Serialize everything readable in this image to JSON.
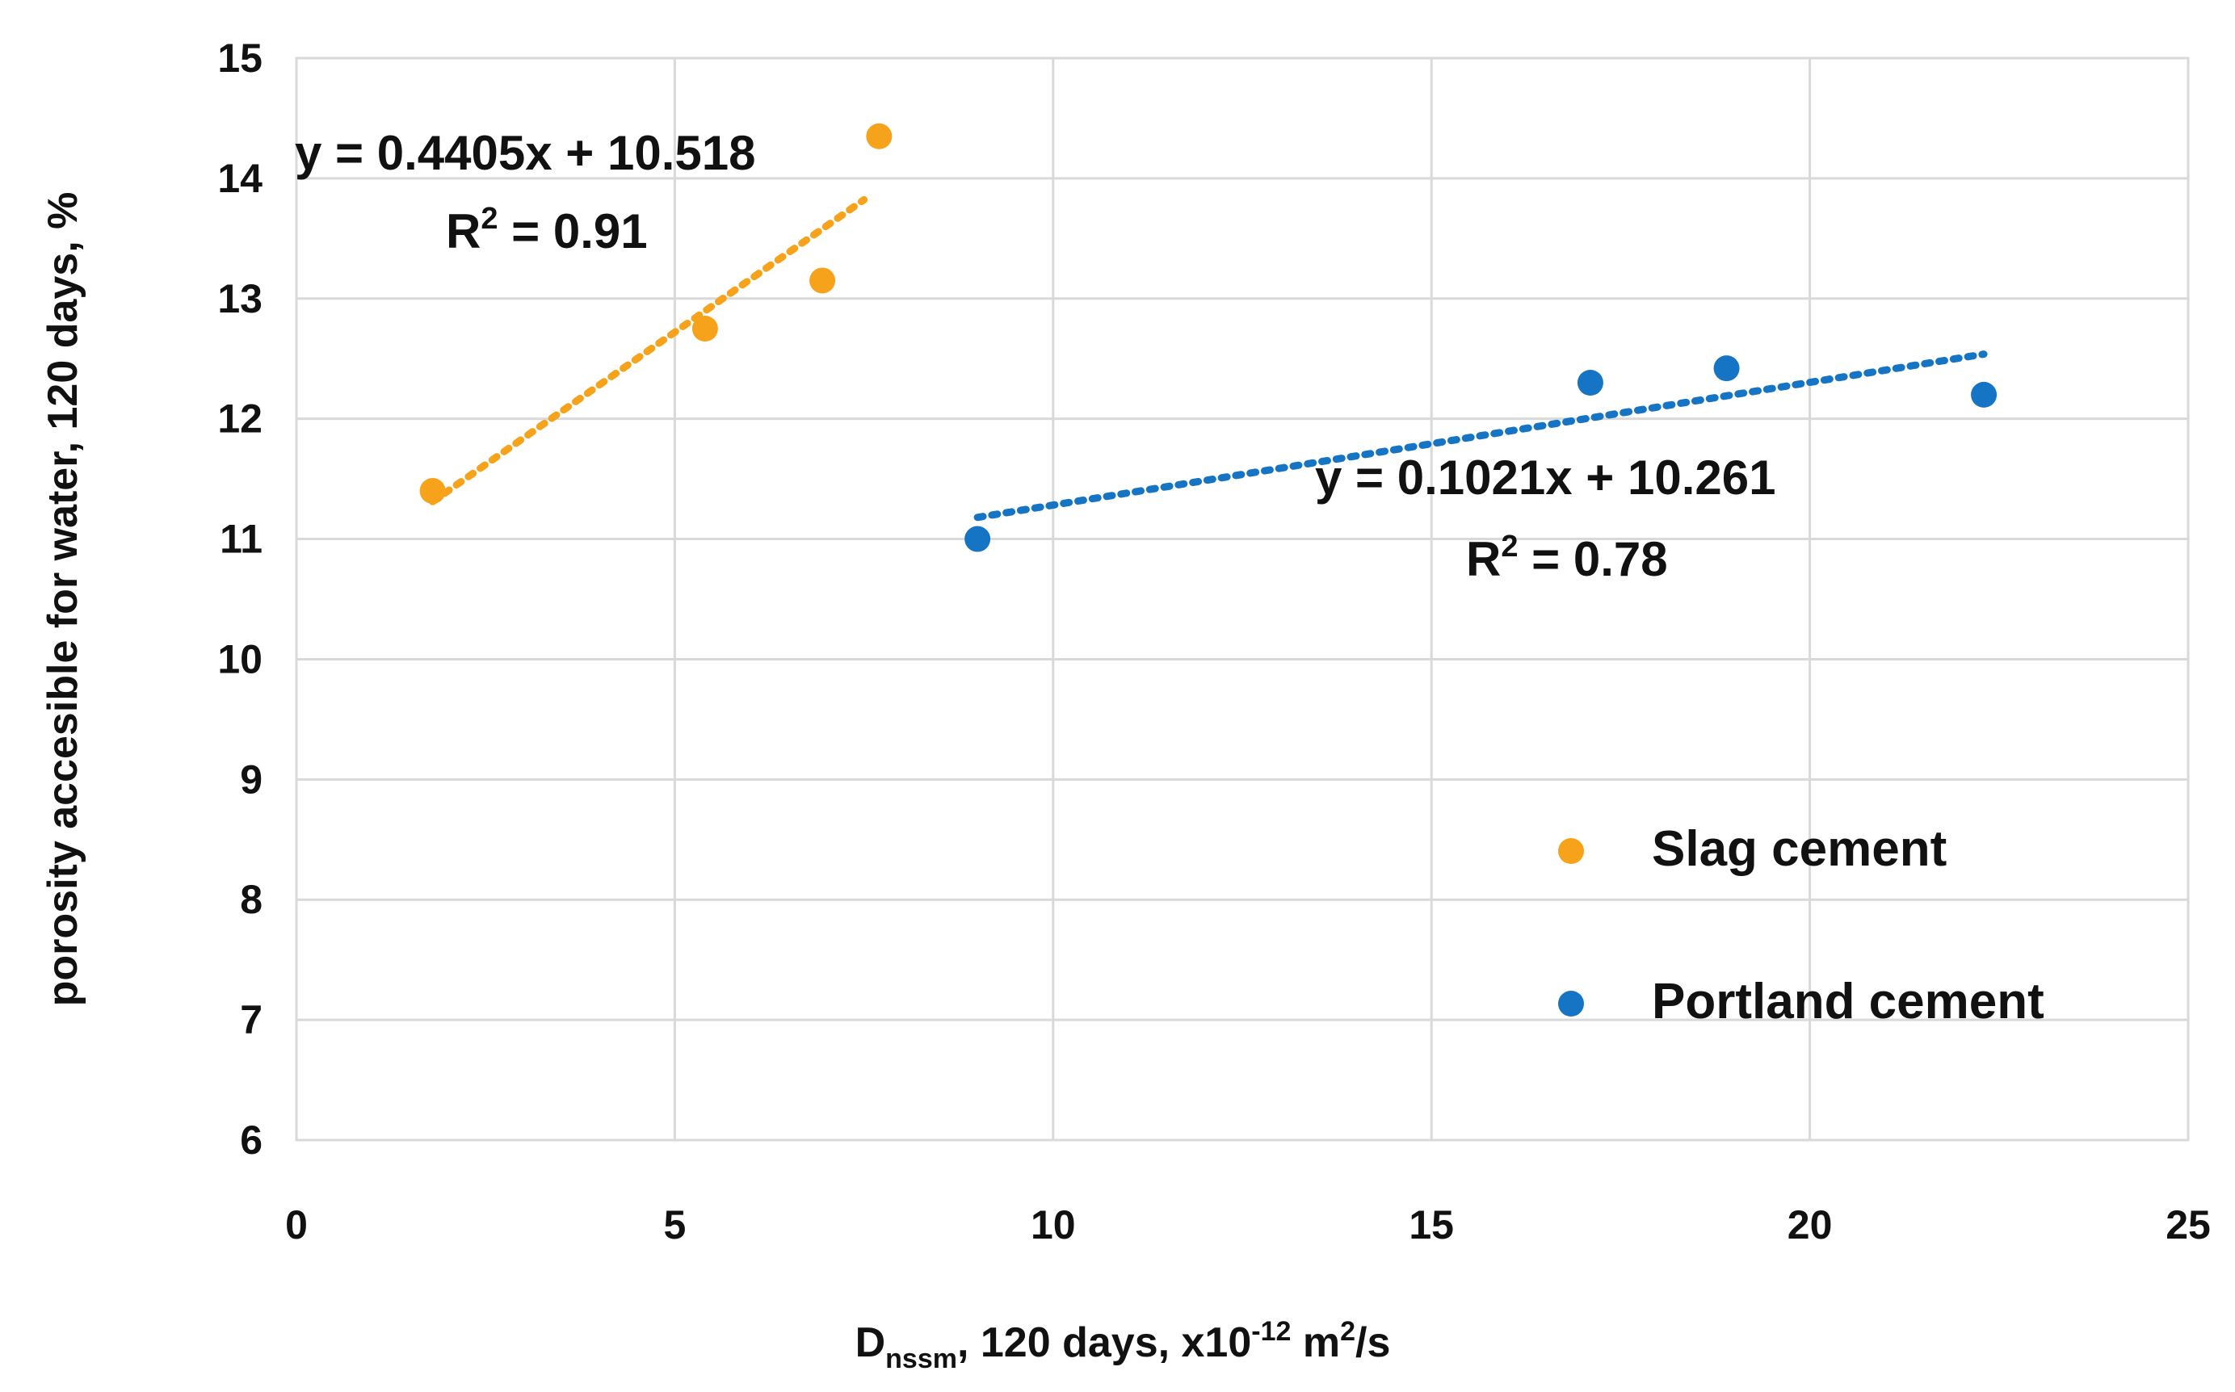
{
  "chart_data": {
    "type": "scatter",
    "title": "",
    "xlabel": {
      "main": "D",
      "sub": "nssm",
      "rest": ", 120 days, x10",
      "exp": "-12",
      "unit": " m",
      "unit_exp": "2",
      "unit_end": "/s"
    },
    "ylabel": "porosity accesible for water, 120  days, %",
    "xlim": [
      0,
      25
    ],
    "ylim": [
      6,
      15
    ],
    "xticks": [
      "0",
      "5",
      "10",
      "15",
      "20",
      "25"
    ],
    "yticks": [
      "6",
      "7",
      "8",
      "9",
      "10",
      "11",
      "12",
      "13",
      "14",
      "15"
    ],
    "grid": true,
    "legend_position": "lower-right",
    "series": [
      {
        "name": "Slag cement",
        "color": "#f7a21b",
        "points": [
          [
            1.8,
            11.4
          ],
          [
            5.4,
            12.75
          ],
          [
            6.95,
            13.15
          ],
          [
            7.7,
            14.35
          ]
        ],
        "trend": {
          "slope": 0.4405,
          "intercept": 10.518,
          "x_range": [
            1.8,
            7.5
          ],
          "equation": "y = 0.4405x + 10.518",
          "r2_prefix": "R",
          "r2_exp": "2",
          "r2_value": " = 0.91"
        }
      },
      {
        "name": "Portland cement",
        "color": "#1574c4",
        "points": [
          [
            9.0,
            11.0
          ],
          [
            17.1,
            12.3
          ],
          [
            18.9,
            12.42
          ],
          [
            22.3,
            12.2
          ]
        ],
        "trend": {
          "slope": 0.1021,
          "intercept": 10.261,
          "x_range": [
            9.0,
            22.3
          ],
          "equation": "y = 0.1021x + 10.261",
          "r2_prefix": "R",
          "r2_exp": "2",
          "r2_value": " = 0.78"
        }
      }
    ]
  }
}
